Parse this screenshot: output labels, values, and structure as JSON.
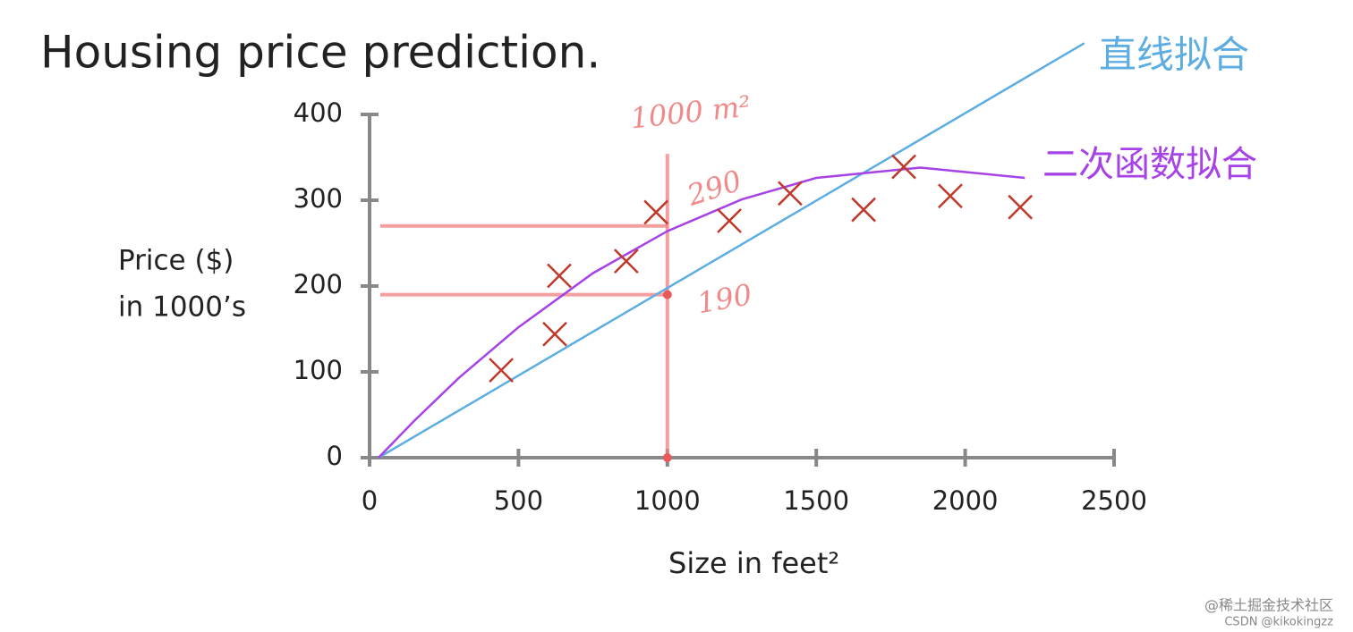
{
  "chart_data": {
    "type": "scatter",
    "title": "Housing price prediction.",
    "xlabel": "Size in feet²",
    "ylabel": [
      "Price ($)",
      "in 1000’s"
    ],
    "xlim": [
      0,
      2500
    ],
    "ylim": [
      0,
      400
    ],
    "xticks": [
      0,
      500,
      1000,
      1500,
      2000,
      2500
    ],
    "yticks": [
      0,
      100,
      200,
      300,
      400
    ],
    "x": [
      442,
      622,
      637,
      862,
      962,
      1208,
      1412,
      1659,
      1794,
      1950,
      2185
    ],
    "values": [
      102,
      144,
      212,
      229,
      286,
      276,
      308,
      289,
      339,
      305,
      292
    ],
    "color": "#c0392b",
    "series": [
      {
        "name": "直线拟合",
        "type": "line",
        "color": "#5dade2",
        "x": [
          30,
          2400
        ],
        "values": [
          0,
          483
        ]
      },
      {
        "name": "二次函数拟合",
        "type": "line",
        "color": "#a642e6",
        "x": [
          30,
          150,
          300,
          500,
          750,
          1000,
          1250,
          1500,
          1850,
          2200
        ],
        "values": [
          0,
          43,
          93,
          152,
          215,
          264,
          301,
          326,
          338,
          326
        ]
      }
    ],
    "guides": {
      "x": 1000,
      "x_top": 354,
      "y_values": [
        270,
        190
      ],
      "dots": [
        190,
        0
      ]
    },
    "annotations": [
      "1000 m²",
      "290",
      "190"
    ],
    "watermark": [
      "@稀土掘金技术社区",
      "CSDN @kikokingzz"
    ]
  }
}
